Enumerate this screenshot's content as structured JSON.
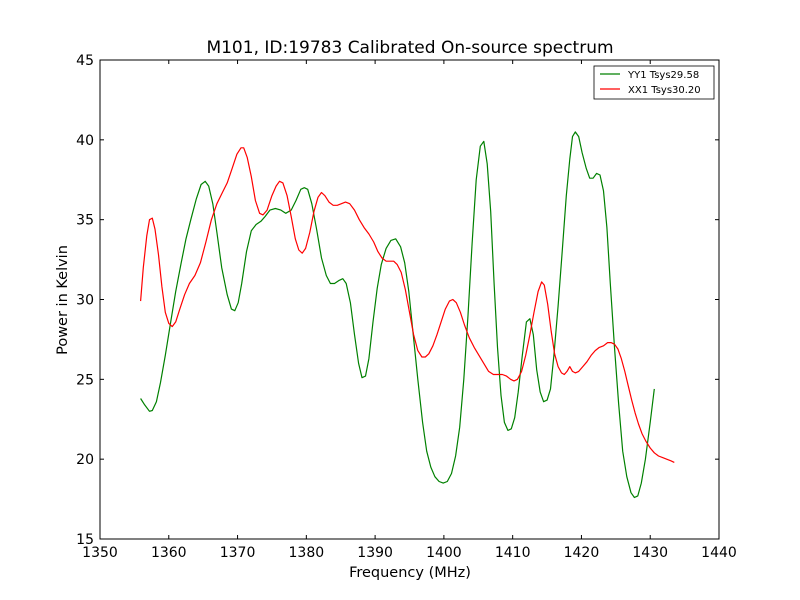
{
  "chart_data": {
    "type": "line",
    "title": "M101, ID:19783 Calibrated On-source spectrum",
    "xlabel": "Frequency (MHz)",
    "ylabel": "Power in Kelvin",
    "xlim": [
      1350,
      1440
    ],
    "ylim": [
      15,
      45
    ],
    "xticks": [
      1350,
      1360,
      1370,
      1380,
      1390,
      1400,
      1410,
      1420,
      1430,
      1440
    ],
    "yticks": [
      15,
      20,
      25,
      30,
      35,
      40,
      45
    ],
    "grid": false,
    "legend_position": "top-right",
    "series": [
      {
        "name": "YY1 Tsys29.58",
        "color": "#008000",
        "points": [
          [
            1355.9,
            23.8
          ],
          [
            1356.5,
            23.4
          ],
          [
            1357.2,
            23.0
          ],
          [
            1357.6,
            23.05
          ],
          [
            1358.2,
            23.6
          ],
          [
            1358.8,
            24.8
          ],
          [
            1359.5,
            26.5
          ],
          [
            1360.2,
            28.4
          ],
          [
            1361.0,
            30.5
          ],
          [
            1361.8,
            32.3
          ],
          [
            1362.5,
            33.8
          ],
          [
            1363.2,
            35.0
          ],
          [
            1364.0,
            36.3
          ],
          [
            1364.7,
            37.2
          ],
          [
            1365.3,
            37.4
          ],
          [
            1365.8,
            37.1
          ],
          [
            1366.4,
            36.0
          ],
          [
            1367.0,
            34.2
          ],
          [
            1367.7,
            32.0
          ],
          [
            1368.5,
            30.3
          ],
          [
            1369.1,
            29.4
          ],
          [
            1369.6,
            29.3
          ],
          [
            1370.1,
            29.8
          ],
          [
            1370.6,
            31.0
          ],
          [
            1371.3,
            33.0
          ],
          [
            1372.0,
            34.3
          ],
          [
            1372.7,
            34.7
          ],
          [
            1373.4,
            34.9
          ],
          [
            1374.0,
            35.2
          ],
          [
            1374.7,
            35.6
          ],
          [
            1375.5,
            35.7
          ],
          [
            1376.3,
            35.6
          ],
          [
            1377.0,
            35.4
          ],
          [
            1377.8,
            35.6
          ],
          [
            1378.5,
            36.2
          ],
          [
            1379.2,
            36.9
          ],
          [
            1379.7,
            37.0
          ],
          [
            1380.2,
            36.9
          ],
          [
            1380.8,
            36.0
          ],
          [
            1381.5,
            34.4
          ],
          [
            1382.2,
            32.6
          ],
          [
            1382.9,
            31.5
          ],
          [
            1383.5,
            31.0
          ],
          [
            1384.1,
            31.0
          ],
          [
            1384.8,
            31.2
          ],
          [
            1385.3,
            31.3
          ],
          [
            1385.8,
            31.0
          ],
          [
            1386.4,
            29.8
          ],
          [
            1387.0,
            27.8
          ],
          [
            1387.6,
            26.0
          ],
          [
            1388.1,
            25.1
          ],
          [
            1388.6,
            25.2
          ],
          [
            1389.1,
            26.3
          ],
          [
            1389.7,
            28.6
          ],
          [
            1390.3,
            30.7
          ],
          [
            1390.9,
            32.2
          ],
          [
            1391.6,
            33.2
          ],
          [
            1392.3,
            33.7
          ],
          [
            1393.0,
            33.8
          ],
          [
            1393.7,
            33.3
          ],
          [
            1394.3,
            32.3
          ],
          [
            1394.9,
            30.5
          ],
          [
            1395.5,
            28.0
          ],
          [
            1396.2,
            25.0
          ],
          [
            1396.9,
            22.3
          ],
          [
            1397.5,
            20.5
          ],
          [
            1398.1,
            19.5
          ],
          [
            1398.7,
            18.9
          ],
          [
            1399.3,
            18.6
          ],
          [
            1399.9,
            18.5
          ],
          [
            1400.5,
            18.6
          ],
          [
            1401.1,
            19.1
          ],
          [
            1401.7,
            20.2
          ],
          [
            1402.3,
            22.0
          ],
          [
            1402.9,
            25.0
          ],
          [
            1403.5,
            29.0
          ],
          [
            1404.1,
            33.5
          ],
          [
            1404.7,
            37.5
          ],
          [
            1405.3,
            39.6
          ],
          [
            1405.8,
            39.9
          ],
          [
            1406.3,
            38.5
          ],
          [
            1406.8,
            35.5
          ],
          [
            1407.3,
            31.0
          ],
          [
            1407.8,
            27.0
          ],
          [
            1408.3,
            24.0
          ],
          [
            1408.8,
            22.3
          ],
          [
            1409.3,
            21.8
          ],
          [
            1409.8,
            21.9
          ],
          [
            1410.3,
            22.6
          ],
          [
            1410.8,
            24.2
          ],
          [
            1411.4,
            26.5
          ],
          [
            1412.0,
            28.6
          ],
          [
            1412.5,
            28.8
          ],
          [
            1413.0,
            27.8
          ],
          [
            1413.5,
            25.6
          ],
          [
            1414.0,
            24.2
          ],
          [
            1414.5,
            23.6
          ],
          [
            1415.0,
            23.7
          ],
          [
            1415.5,
            24.4
          ],
          [
            1416.0,
            26.5
          ],
          [
            1416.6,
            29.6
          ],
          [
            1417.2,
            33.0
          ],
          [
            1417.8,
            36.5
          ],
          [
            1418.3,
            38.8
          ],
          [
            1418.7,
            40.2
          ],
          [
            1419.1,
            40.5
          ],
          [
            1419.6,
            40.2
          ],
          [
            1420.1,
            39.2
          ],
          [
            1420.7,
            38.2
          ],
          [
            1421.2,
            37.6
          ],
          [
            1421.7,
            37.6
          ],
          [
            1422.2,
            37.9
          ],
          [
            1422.7,
            37.8
          ],
          [
            1423.2,
            36.8
          ],
          [
            1423.7,
            34.5
          ],
          [
            1424.2,
            31.0
          ],
          [
            1424.8,
            27.0
          ],
          [
            1425.4,
            23.5
          ],
          [
            1426.0,
            20.5
          ],
          [
            1426.6,
            18.9
          ],
          [
            1427.2,
            17.9
          ],
          [
            1427.7,
            17.6
          ],
          [
            1428.2,
            17.7
          ],
          [
            1428.7,
            18.5
          ],
          [
            1429.3,
            20.0
          ],
          [
            1430.0,
            22.3
          ],
          [
            1430.6,
            24.4
          ]
        ]
      },
      {
        "name": "XX1 Tsys30.20",
        "color": "#ff0000",
        "points": [
          [
            1355.9,
            29.9
          ],
          [
            1356.3,
            32.0
          ],
          [
            1356.8,
            34.0
          ],
          [
            1357.2,
            35.0
          ],
          [
            1357.6,
            35.1
          ],
          [
            1358.0,
            34.4
          ],
          [
            1358.5,
            32.8
          ],
          [
            1359.0,
            30.8
          ],
          [
            1359.5,
            29.2
          ],
          [
            1360.0,
            28.5
          ],
          [
            1360.5,
            28.3
          ],
          [
            1361.0,
            28.6
          ],
          [
            1361.6,
            29.4
          ],
          [
            1362.3,
            30.3
          ],
          [
            1363.0,
            31.0
          ],
          [
            1363.8,
            31.5
          ],
          [
            1364.6,
            32.3
          ],
          [
            1365.4,
            33.6
          ],
          [
            1366.2,
            35.0
          ],
          [
            1367.0,
            36.0
          ],
          [
            1367.8,
            36.7
          ],
          [
            1368.5,
            37.3
          ],
          [
            1369.2,
            38.2
          ],
          [
            1369.9,
            39.1
          ],
          [
            1370.5,
            39.5
          ],
          [
            1370.9,
            39.5
          ],
          [
            1371.4,
            38.9
          ],
          [
            1372.0,
            37.7
          ],
          [
            1372.6,
            36.2
          ],
          [
            1373.2,
            35.4
          ],
          [
            1373.7,
            35.3
          ],
          [
            1374.3,
            35.6
          ],
          [
            1375.0,
            36.5
          ],
          [
            1375.6,
            37.1
          ],
          [
            1376.1,
            37.4
          ],
          [
            1376.6,
            37.3
          ],
          [
            1377.2,
            36.5
          ],
          [
            1377.8,
            35.2
          ],
          [
            1378.4,
            33.8
          ],
          [
            1378.9,
            33.1
          ],
          [
            1379.4,
            32.9
          ],
          [
            1379.9,
            33.2
          ],
          [
            1380.5,
            34.2
          ],
          [
            1381.1,
            35.5
          ],
          [
            1381.7,
            36.4
          ],
          [
            1382.2,
            36.7
          ],
          [
            1382.7,
            36.5
          ],
          [
            1383.3,
            36.1
          ],
          [
            1383.9,
            35.9
          ],
          [
            1384.5,
            35.9
          ],
          [
            1385.1,
            36.0
          ],
          [
            1385.7,
            36.1
          ],
          [
            1386.3,
            36.0
          ],
          [
            1387.0,
            35.6
          ],
          [
            1387.7,
            35.0
          ],
          [
            1388.4,
            34.5
          ],
          [
            1389.1,
            34.1
          ],
          [
            1389.8,
            33.6
          ],
          [
            1390.4,
            33.0
          ],
          [
            1391.0,
            32.6
          ],
          [
            1391.6,
            32.4
          ],
          [
            1392.2,
            32.4
          ],
          [
            1392.7,
            32.4
          ],
          [
            1393.2,
            32.2
          ],
          [
            1393.8,
            31.7
          ],
          [
            1394.4,
            30.6
          ],
          [
            1395.0,
            29.2
          ],
          [
            1395.6,
            27.8
          ],
          [
            1396.2,
            26.8
          ],
          [
            1396.8,
            26.4
          ],
          [
            1397.3,
            26.4
          ],
          [
            1397.8,
            26.6
          ],
          [
            1398.4,
            27.1
          ],
          [
            1399.0,
            27.8
          ],
          [
            1399.6,
            28.6
          ],
          [
            1400.2,
            29.4
          ],
          [
            1400.8,
            29.9
          ],
          [
            1401.3,
            30.0
          ],
          [
            1401.8,
            29.8
          ],
          [
            1402.4,
            29.2
          ],
          [
            1403.0,
            28.4
          ],
          [
            1403.7,
            27.6
          ],
          [
            1404.4,
            27.0
          ],
          [
            1405.1,
            26.5
          ],
          [
            1405.8,
            26.0
          ],
          [
            1406.5,
            25.5
          ],
          [
            1407.2,
            25.3
          ],
          [
            1407.9,
            25.3
          ],
          [
            1408.5,
            25.3
          ],
          [
            1409.1,
            25.2
          ],
          [
            1409.7,
            25.0
          ],
          [
            1410.2,
            24.9
          ],
          [
            1410.7,
            25.0
          ],
          [
            1411.3,
            25.5
          ],
          [
            1411.9,
            26.5
          ],
          [
            1412.5,
            27.8
          ],
          [
            1413.1,
            29.2
          ],
          [
            1413.7,
            30.5
          ],
          [
            1414.2,
            31.1
          ],
          [
            1414.6,
            30.9
          ],
          [
            1415.1,
            29.7
          ],
          [
            1415.6,
            28.0
          ],
          [
            1416.1,
            26.6
          ],
          [
            1416.6,
            25.8
          ],
          [
            1417.1,
            25.4
          ],
          [
            1417.5,
            25.3
          ],
          [
            1417.9,
            25.5
          ],
          [
            1418.3,
            25.8
          ],
          [
            1418.7,
            25.5
          ],
          [
            1419.1,
            25.4
          ],
          [
            1419.6,
            25.5
          ],
          [
            1420.2,
            25.8
          ],
          [
            1420.8,
            26.1
          ],
          [
            1421.4,
            26.5
          ],
          [
            1422.0,
            26.8
          ],
          [
            1422.6,
            27.0
          ],
          [
            1423.2,
            27.1
          ],
          [
            1423.8,
            27.3
          ],
          [
            1424.3,
            27.3
          ],
          [
            1424.8,
            27.2
          ],
          [
            1425.3,
            26.9
          ],
          [
            1425.8,
            26.3
          ],
          [
            1426.3,
            25.5
          ],
          [
            1426.8,
            24.6
          ],
          [
            1427.3,
            23.7
          ],
          [
            1427.8,
            22.9
          ],
          [
            1428.3,
            22.2
          ],
          [
            1428.8,
            21.6
          ],
          [
            1429.4,
            21.1
          ],
          [
            1430.0,
            20.7
          ],
          [
            1430.6,
            20.4
          ],
          [
            1431.2,
            20.2
          ],
          [
            1431.8,
            20.1
          ],
          [
            1432.4,
            20.0
          ],
          [
            1433.0,
            19.9
          ],
          [
            1433.5,
            19.8
          ]
        ]
      }
    ]
  }
}
